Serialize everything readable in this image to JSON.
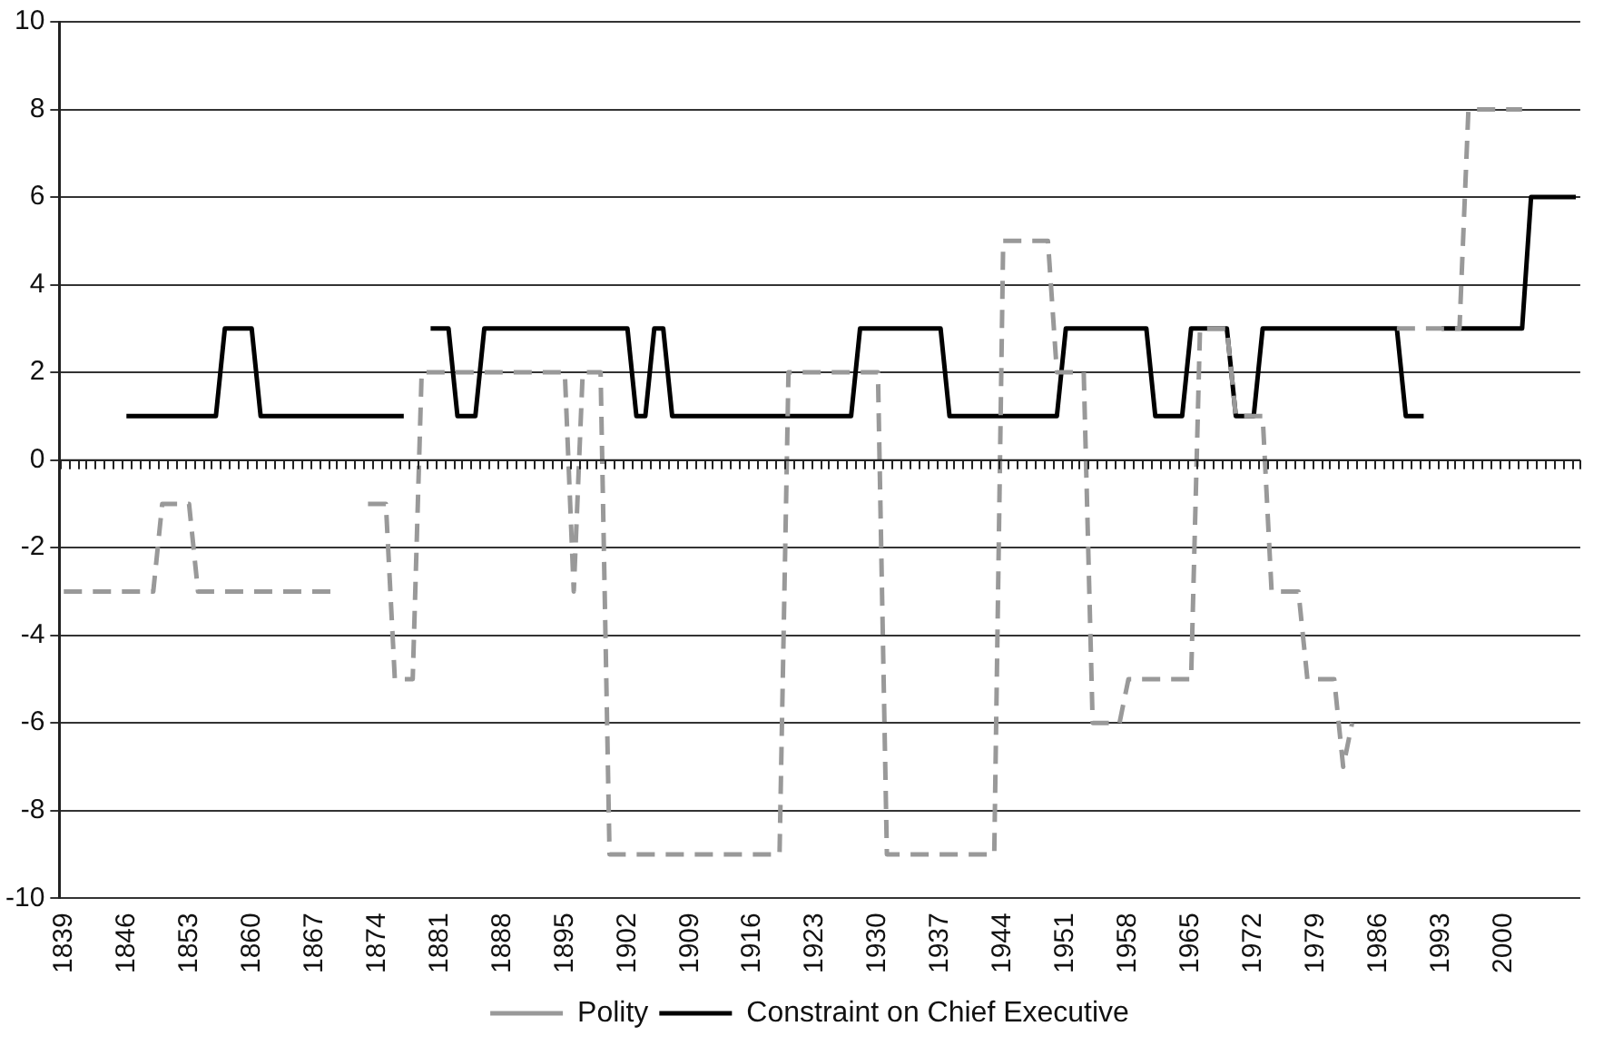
{
  "chart_data": {
    "type": "line",
    "categories": [
      "1839",
      null,
      null,
      null,
      null,
      null,
      null,
      "1846",
      null,
      null,
      null,
      null,
      null,
      null,
      "1853",
      null,
      null,
      null,
      null,
      null,
      null,
      "1860",
      null,
      null,
      null,
      null,
      null,
      null,
      "1867",
      null,
      null,
      null,
      null,
      null,
      null,
      "1874",
      null,
      null,
      null,
      null,
      null,
      null,
      "1881",
      null,
      null,
      null,
      null,
      null,
      null,
      "1888",
      null,
      null,
      null,
      null,
      null,
      null,
      "1895",
      null,
      null,
      null,
      null,
      null,
      null,
      "1902",
      null,
      null,
      null,
      null,
      null,
      null,
      "1909",
      null,
      null,
      null,
      null,
      null,
      null,
      "1916",
      null,
      null,
      null,
      null,
      null,
      null,
      "1923",
      null,
      null,
      null,
      null,
      null,
      null,
      "1930",
      null,
      null,
      null,
      null,
      null,
      null,
      "1937",
      null,
      null,
      null,
      null,
      null,
      null,
      "1944",
      null,
      null,
      null,
      null,
      null,
      null,
      "1951",
      null,
      null,
      null,
      null,
      null,
      null,
      "1958",
      null,
      null,
      null,
      null,
      null,
      null,
      "1965",
      null,
      null,
      null,
      null,
      null,
      null,
      "1972",
      null,
      null,
      null,
      null,
      null,
      null,
      "1979",
      null,
      null,
      null,
      null,
      null,
      null,
      "1986",
      null,
      null,
      null,
      null,
      null,
      null,
      "1993",
      null,
      null,
      null,
      null,
      null,
      null,
      "2000",
      null,
      null,
      null,
      null,
      null,
      null,
      null,
      null
    ],
    "series": [
      {
        "name": "Polity",
        "color": "#999999",
        "line_style": "dashed",
        "values": [
          -3,
          -3,
          -3,
          -3,
          -3,
          -3,
          -3,
          -3,
          -3,
          -3,
          -3,
          -1,
          -1,
          -1,
          -1,
          -3,
          -3,
          -3,
          -3,
          -3,
          -3,
          -3,
          -3,
          -3,
          -3,
          -3,
          -3,
          -3,
          -3,
          -3,
          -3,
          -3,
          null,
          null,
          -1,
          -1,
          -1,
          -5,
          -5,
          -5,
          2,
          2,
          2,
          2,
          2,
          2,
          2,
          2,
          2,
          2,
          2,
          2,
          2,
          2,
          2,
          2,
          2,
          -3,
          2,
          2,
          2,
          -9,
          -9,
          -9,
          -9,
          -9,
          -9,
          -9,
          -9,
          -9,
          -9,
          -9,
          -9,
          -9,
          -9,
          -9,
          -9,
          -9,
          -9,
          -9,
          -9,
          2,
          2,
          2,
          2,
          2,
          2,
          2,
          2,
          2,
          2,
          2,
          -9,
          -9,
          -9,
          -9,
          -9,
          -9,
          -9,
          -9,
          -9,
          -9,
          -9,
          -9,
          -9,
          5,
          5,
          5,
          5,
          5,
          5,
          2,
          2,
          2,
          2,
          -6,
          -6,
          -6,
          -6,
          -5,
          -5,
          -5,
          -5,
          -5,
          -5,
          -5,
          -5,
          3,
          3,
          3,
          3,
          1,
          1,
          1,
          1,
          -3,
          -3,
          -3,
          -3,
          -5,
          -5,
          -5,
          -5,
          -7,
          -6,
          null,
          null,
          null,
          null,
          3,
          3,
          3,
          3,
          3,
          3,
          3,
          3,
          8,
          8,
          8,
          8,
          8,
          8,
          8,
          null,
          null,
          null,
          null,
          null,
          null
        ]
      },
      {
        "name": "Constraint on Chief Executive",
        "color": "#000000",
        "line_style": "solid",
        "values": [
          null,
          null,
          null,
          null,
          null,
          null,
          null,
          1,
          1,
          1,
          1,
          1,
          1,
          1,
          1,
          1,
          1,
          1,
          3,
          3,
          3,
          3,
          1,
          1,
          1,
          1,
          1,
          1,
          1,
          1,
          1,
          1,
          1,
          1,
          1,
          1,
          1,
          1,
          1,
          null,
          null,
          3,
          3,
          3,
          1,
          1,
          1,
          3,
          3,
          3,
          3,
          3,
          3,
          3,
          3,
          3,
          3,
          3,
          3,
          3,
          3,
          3,
          3,
          3,
          1,
          1,
          3,
          3,
          1,
          1,
          1,
          1,
          1,
          1,
          1,
          1,
          1,
          1,
          1,
          1,
          1,
          1,
          1,
          1,
          1,
          1,
          1,
          1,
          1,
          3,
          3,
          3,
          3,
          3,
          3,
          3,
          3,
          3,
          3,
          1,
          1,
          1,
          1,
          1,
          1,
          1,
          1,
          1,
          1,
          1,
          1,
          1,
          3,
          3,
          3,
          3,
          3,
          3,
          3,
          3,
          3,
          3,
          1,
          1,
          1,
          1,
          3,
          3,
          3,
          3,
          3,
          1,
          1,
          1,
          3,
          3,
          3,
          3,
          3,
          3,
          3,
          3,
          3,
          3,
          3,
          3,
          3,
          3,
          3,
          3,
          1,
          1,
          1,
          null,
          3,
          3,
          3,
          3,
          3,
          3,
          3,
          3,
          3,
          3,
          6,
          6,
          6,
          6,
          6,
          6
        ]
      }
    ],
    "ylim": [
      -10,
      10
    ],
    "yticks": [
      -10,
      -8,
      -6,
      -4,
      -2,
      0,
      2,
      4,
      6,
      8,
      10
    ],
    "grid": "y",
    "legend": "bottom"
  }
}
